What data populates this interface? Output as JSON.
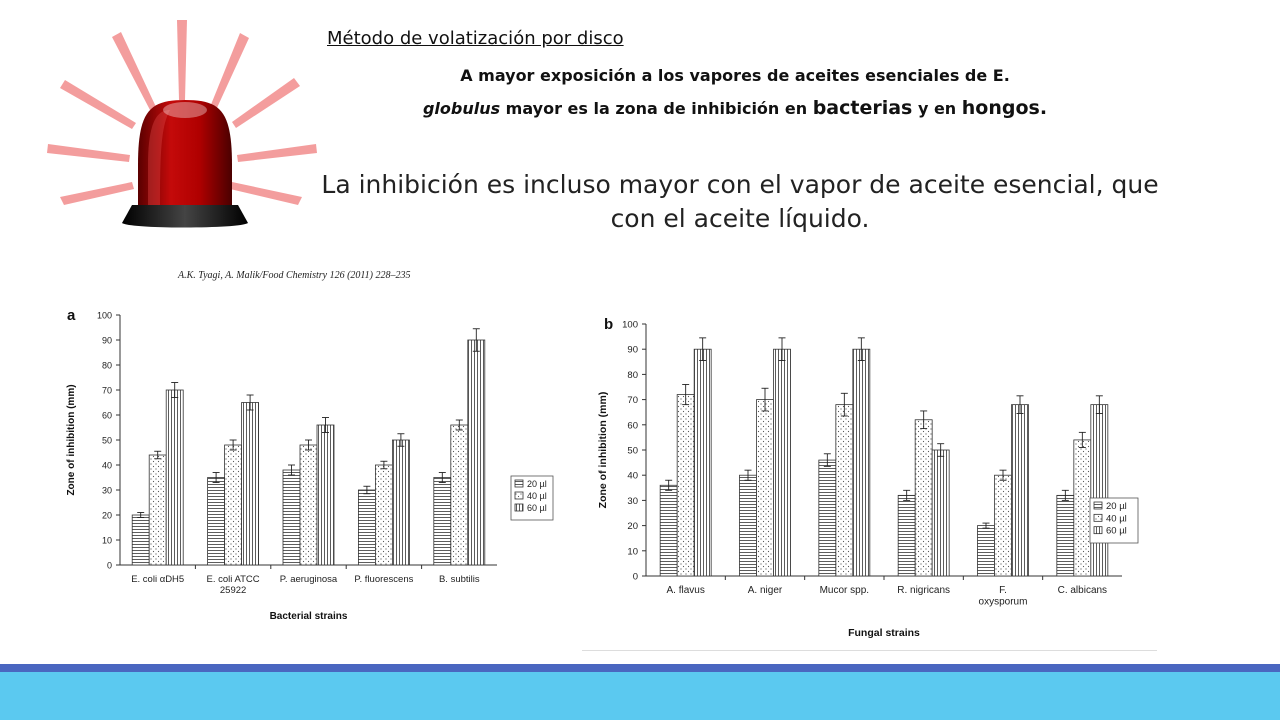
{
  "header": {
    "method": "Método de volatización por disco",
    "line1": "A mayor exposición a los vapores de aceites esenciales de E.",
    "line2_italic": "globulus",
    "line2_mid": " mayor es la zona de inhibición en ",
    "line2_bacterias": "bacterias",
    "line2_y_en": " y en ",
    "line2_hongos": "hongos."
  },
  "statement": {
    "line1": "La inhibición es incluso mayor con el vapor de aceite esencial, que",
    "line2": "con el aceite líquido."
  },
  "citation": "A.K. Tyagi, A. Malik/Food Chemistry 126 (2011) 228–235",
  "icons": {
    "alarm": "alarm-light-icon"
  },
  "colors": {
    "band_dark": "#4a66c0",
    "band_light": "#5bc9f0"
  },
  "chart_data": [
    {
      "type": "bar",
      "panel": "a",
      "categories": [
        "E. coli αDH5",
        "E. coli ATCC\n25922",
        "P.  aeruginosa",
        "P.  fluorescens",
        "B.  subtilis"
      ],
      "series": [
        {
          "name": "20 µl",
          "values": [
            20,
            35,
            38,
            30,
            35
          ],
          "errors": [
            1,
            2,
            2,
            1.5,
            2
          ]
        },
        {
          "name": "40 µl",
          "values": [
            44,
            48,
            48,
            40,
            56
          ],
          "errors": [
            1.5,
            2,
            2,
            1.5,
            2
          ]
        },
        {
          "name": "60 µl",
          "values": [
            70,
            65,
            56,
            50,
            90
          ],
          "errors": [
            3,
            3,
            3,
            2.5,
            4.5
          ]
        }
      ],
      "xlabel": "Bacterial strains",
      "ylabel": "Zone of inhibition (mm)",
      "ylim": [
        0,
        100
      ],
      "yticks": [
        0,
        10,
        20,
        30,
        40,
        50,
        60,
        70,
        80,
        90,
        100
      ],
      "legend": "right",
      "grid": false
    },
    {
      "type": "bar",
      "panel": "b",
      "categories": [
        "A.  flavus",
        "A.  niger",
        "Mucor spp.",
        "R.  nigricans",
        "F.\noxysporum",
        "C.  albicans"
      ],
      "series": [
        {
          "name": "20 µl",
          "values": [
            36,
            40,
            46,
            32,
            20,
            32
          ],
          "errors": [
            2,
            2,
            2.5,
            2,
            1,
            2
          ]
        },
        {
          "name": "40 µl",
          "values": [
            72,
            70,
            68,
            62,
            40,
            54
          ],
          "errors": [
            4,
            4.5,
            4.5,
            3.5,
            2,
            3
          ]
        },
        {
          "name": "60 µl",
          "values": [
            90,
            90,
            90,
            50,
            68,
            68
          ],
          "errors": [
            4.5,
            4.5,
            4.5,
            2.5,
            3.5,
            3.5
          ]
        }
      ],
      "xlabel": "Fungal strains",
      "ylabel": "Zone of inhibition (mm)",
      "ylim": [
        0,
        100
      ],
      "yticks": [
        0,
        10,
        20,
        30,
        40,
        50,
        60,
        70,
        80,
        90,
        100
      ],
      "legend": "right",
      "grid": false
    }
  ]
}
